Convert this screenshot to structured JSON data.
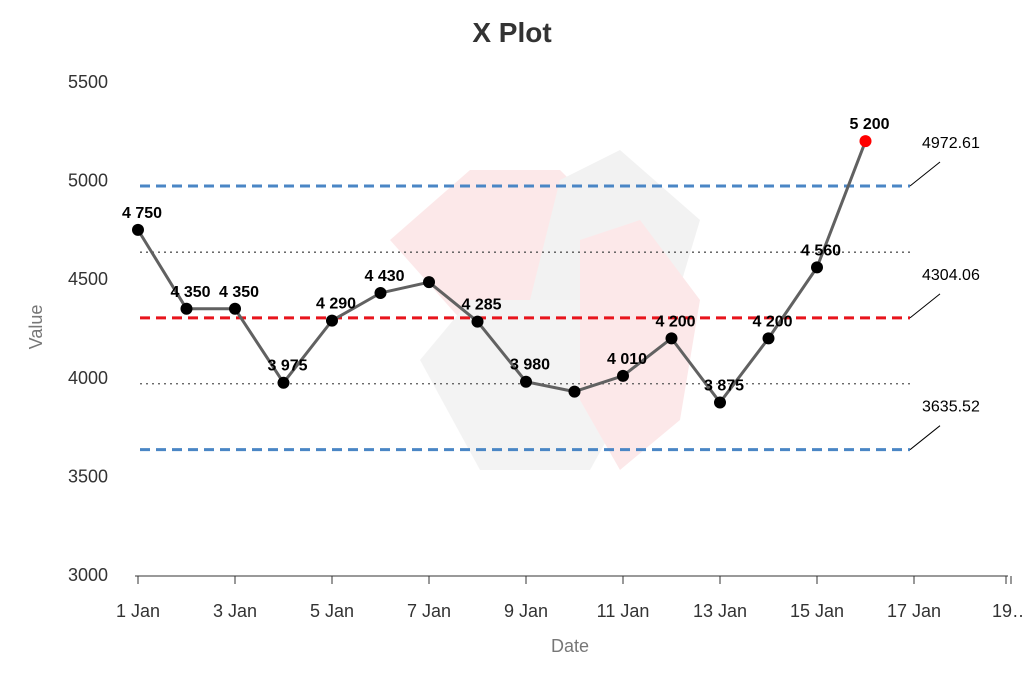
{
  "chart_data": {
    "type": "line",
    "title": "X Plot",
    "xlabel": "Date",
    "ylabel": "Value",
    "ylim": [
      3000,
      5500
    ],
    "yticks": [
      3000,
      3500,
      4000,
      4500,
      5000,
      5500
    ],
    "x_tick_labels": [
      "1 Jan",
      "3 Jan",
      "5 Jan",
      "7 Jan",
      "9 Jan",
      "11 Jan",
      "13 Jan",
      "15 Jan",
      "17 Jan",
      "19…"
    ],
    "x": [
      "1 Jan",
      "2 Jan",
      "3 Jan",
      "4 Jan",
      "5 Jan",
      "6 Jan",
      "7 Jan",
      "8 Jan",
      "9 Jan",
      "10 Jan",
      "11 Jan",
      "12 Jan",
      "13 Jan",
      "14 Jan",
      "15 Jan",
      "16 Jan"
    ],
    "values": [
      4750,
      4350,
      4350,
      3975,
      4290,
      4430,
      4485,
      4285,
      3980,
      3930,
      4010,
      4200,
      3875,
      4200,
      4560,
      5200
    ],
    "point_labels": [
      "4 750",
      "4 350",
      "4 350",
      "3 975",
      "4 290",
      "4 430",
      "",
      "4 285",
      "3 980",
      "",
      "4 010",
      "4 200",
      "3 875",
      "4 200",
      "4 560",
      "5 200"
    ],
    "out_of_control_index": 15,
    "control_limits": {
      "ucl": 4972.61,
      "center": 4304.06,
      "lcl": 3635.52,
      "ucl_label": "4972.61",
      "center_label": "4304.06",
      "lcl_label": "3635.52"
    },
    "sigma_lines": [
      4637,
      3970
    ],
    "colors": {
      "line": "#616161",
      "point": "#000000",
      "out_of_control": "#ff0000",
      "limit": "#4a86c5",
      "center": "#e8141c",
      "sigma": "#555555",
      "tick": "#333333"
    },
    "grid": false,
    "legend": "none"
  }
}
